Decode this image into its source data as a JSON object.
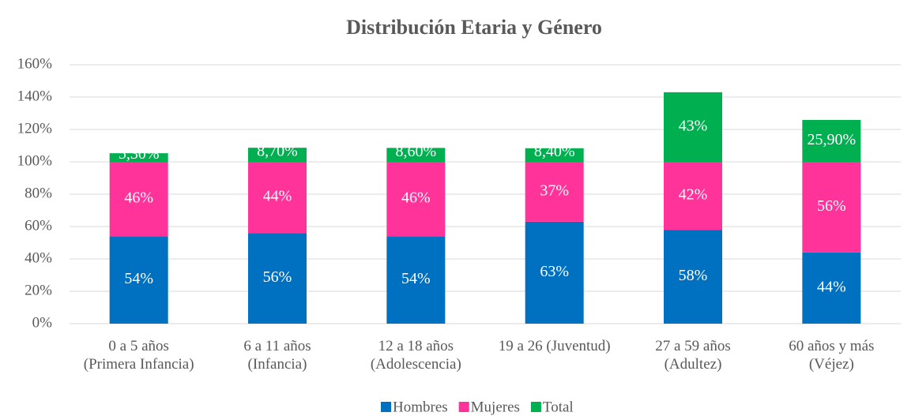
{
  "chart_data": {
    "type": "stacked_bar",
    "title": "Distribución Etaria y Género",
    "categories": [
      [
        "0 a 5 años",
        "(Primera Infancia)"
      ],
      [
        "6 a 11 años",
        "(Infancia)"
      ],
      [
        "12 a 18 años",
        "(Adolescencia)"
      ],
      [
        "19 a 26 (Juventud)"
      ],
      [
        "27 a 59 años",
        "(Adultez)"
      ],
      [
        "60 años y más",
        "(Véjez)"
      ]
    ],
    "series": [
      {
        "name": "Hombres",
        "color": "#0070c0",
        "values": [
          54,
          56,
          54,
          63,
          58,
          44
        ],
        "value_labels": [
          "54%",
          "56%",
          "54%",
          "63%",
          "58%",
          "44%"
        ]
      },
      {
        "name": "Mujeres",
        "color": "#ff3399",
        "values": [
          46,
          44,
          46,
          37,
          42,
          56
        ],
        "value_labels": [
          "46%",
          "44%",
          "46%",
          "37%",
          "42%",
          "56%"
        ]
      },
      {
        "name": "Total",
        "color": "#00b050",
        "values": [
          5.3,
          8.7,
          8.6,
          8.4,
          43,
          25.9
        ],
        "value_labels": [
          "5,30%",
          "8,70%",
          "8,60%",
          "8,40%",
          "43%",
          "25,90%"
        ]
      }
    ],
    "ylim": [
      0,
      160
    ],
    "yticks": [
      {
        "value": 0,
        "label": "0%"
      },
      {
        "value": 20,
        "label": "20%"
      },
      {
        "value": 40,
        "label": "40%"
      },
      {
        "value": 60,
        "label": "60%"
      },
      {
        "value": 80,
        "label": "80%"
      },
      {
        "value": 100,
        "label": "100%"
      },
      {
        "value": 120,
        "label": "120%"
      },
      {
        "value": 140,
        "label": "140%"
      },
      {
        "value": 160,
        "label": "160%"
      }
    ],
    "grid": true,
    "legend": "bottom"
  }
}
